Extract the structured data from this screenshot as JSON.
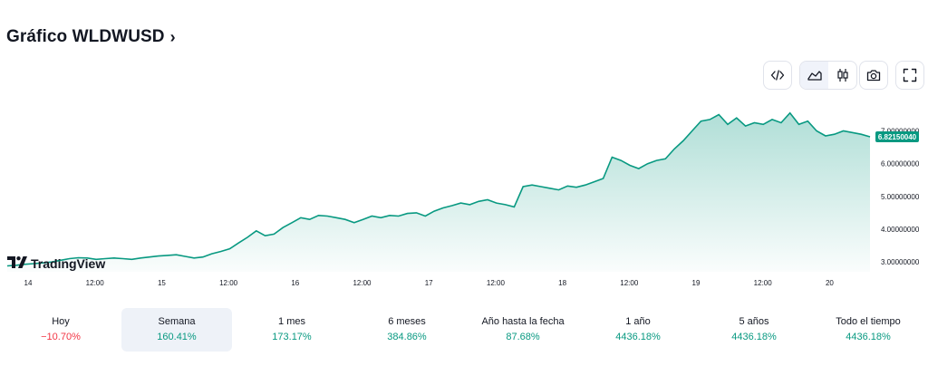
{
  "header": {
    "title": "Gráfico WLDWUSD",
    "chevron": "›"
  },
  "toolbar": {
    "buttons": [
      {
        "name": "embed-code-button",
        "icon": "code-icon"
      },
      {
        "name": "area-chart-button",
        "icon": "area-chart-icon"
      },
      {
        "name": "candles-chart-button",
        "icon": "candlestick-icon"
      },
      {
        "name": "screenshot-button",
        "icon": "camera-icon"
      },
      {
        "name": "fullscreen-button",
        "icon": "fullscreen-icon"
      }
    ]
  },
  "logo": {
    "text": "TradingView"
  },
  "chart_data": {
    "type": "area",
    "x_ticks": [
      "14",
      "12:00",
      "15",
      "12:00",
      "16",
      "12:00",
      "17",
      "12:00",
      "18",
      "12:00",
      "19",
      "12:00",
      "20"
    ],
    "y_ticks": [
      "3.00000000",
      "4.00000000",
      "5.00000000",
      "6.00000000",
      "7.00000000"
    ],
    "ylim": [
      2.7,
      7.9
    ],
    "current_value": "6.82150040",
    "color": "#089981",
    "series": [
      {
        "values": [
          2.88,
          2.9,
          2.93,
          2.95,
          2.97,
          3.0,
          3.05,
          3.1,
          3.13,
          3.12,
          3.08,
          3.1,
          3.12,
          3.1,
          3.08,
          3.12,
          3.15,
          3.18,
          3.2,
          3.22,
          3.17,
          3.12,
          3.15,
          3.25,
          3.32,
          3.4,
          3.58,
          3.75,
          3.95,
          3.8,
          3.85,
          4.05,
          4.2,
          4.35,
          4.3,
          4.42,
          4.4,
          4.35,
          4.3,
          4.2,
          4.3,
          4.4,
          4.35,
          4.42,
          4.4,
          4.48,
          4.5,
          4.4,
          4.55,
          4.65,
          4.72,
          4.8,
          4.75,
          4.85,
          4.9,
          4.8,
          4.75,
          4.68,
          5.3,
          5.35,
          5.3,
          5.25,
          5.2,
          5.32,
          5.28,
          5.35,
          5.45,
          5.55,
          6.2,
          6.1,
          5.95,
          5.85,
          6.0,
          6.1,
          6.15,
          6.45,
          6.7,
          7.0,
          7.3,
          7.35,
          7.5,
          7.2,
          7.4,
          7.15,
          7.25,
          7.2,
          7.35,
          7.25,
          7.55,
          7.2,
          7.3,
          7.0,
          6.85,
          6.9,
          7.0,
          6.95,
          6.9,
          6.82
        ]
      }
    ]
  },
  "periods": [
    {
      "label": "Hoy",
      "value": "−10.70%",
      "status": "negative",
      "active": false
    },
    {
      "label": "Semana",
      "value": "160.41%",
      "status": "positive",
      "active": true
    },
    {
      "label": "1 mes",
      "value": "173.17%",
      "status": "positive",
      "active": false
    },
    {
      "label": "6 meses",
      "value": "384.86%",
      "status": "positive",
      "active": false
    },
    {
      "label": "Año hasta la fecha",
      "value": "87.68%",
      "status": "positive",
      "active": false
    },
    {
      "label": "1 año",
      "value": "4436.18%",
      "status": "positive",
      "active": false
    },
    {
      "label": "5 años",
      "value": "4436.18%",
      "status": "positive",
      "active": false
    },
    {
      "label": "Todo el tiempo",
      "value": "4436.18%",
      "status": "positive",
      "active": false
    }
  ]
}
